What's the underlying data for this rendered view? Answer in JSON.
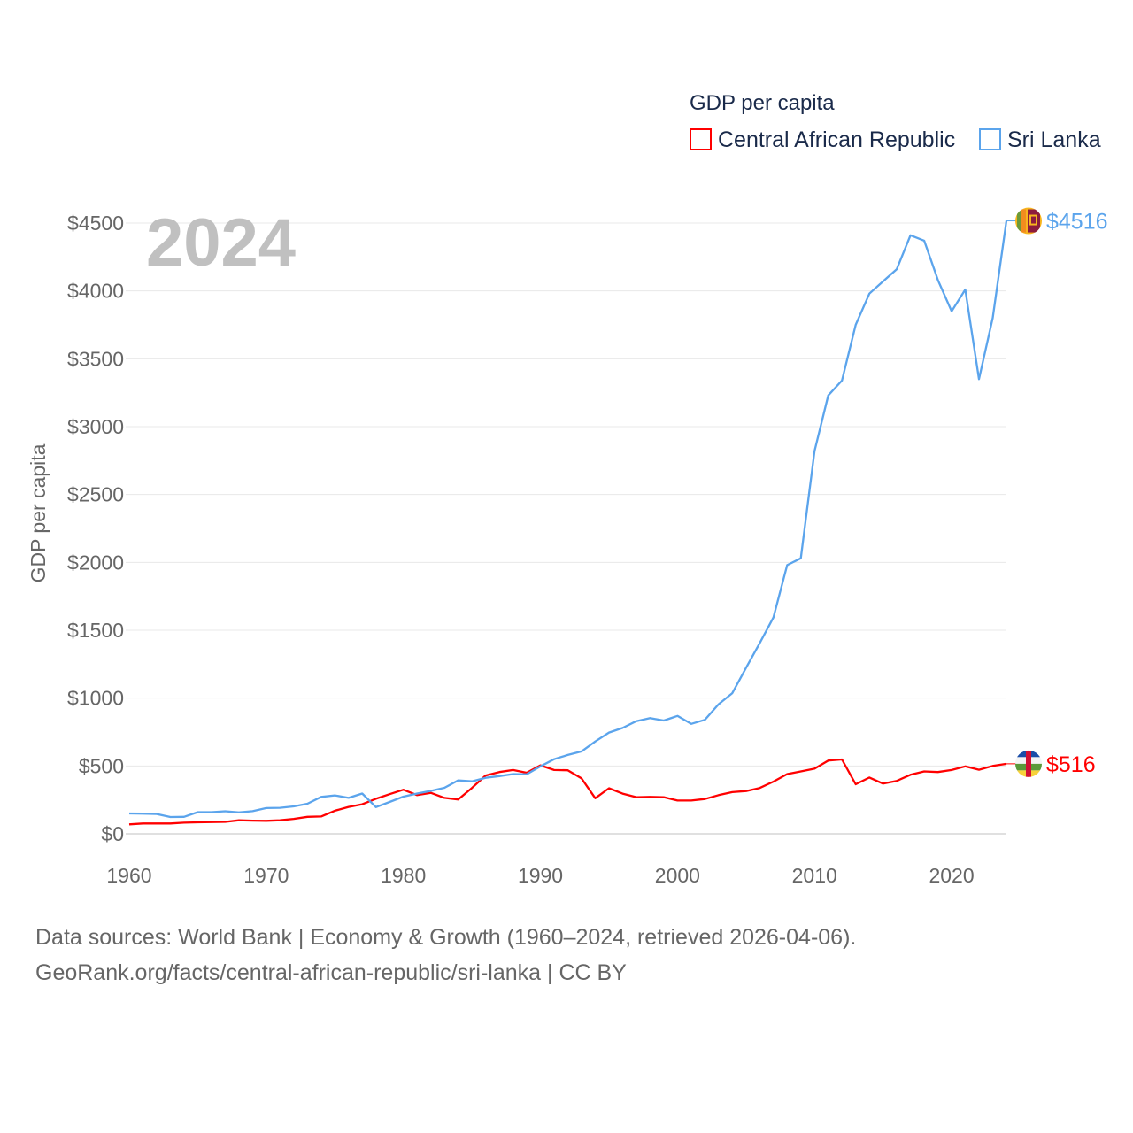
{
  "chart_data": {
    "type": "line",
    "title": "GDP per capita",
    "watermark_year": "2024",
    "xlabel": "",
    "ylabel": "GDP per capita",
    "xlim": [
      1960,
      2024
    ],
    "ylim": [
      0,
      4500
    ],
    "x_ticks": [
      "1960",
      "1970",
      "1980",
      "1990",
      "2000",
      "2010",
      "2020"
    ],
    "y_ticks": [
      "$0",
      "$500",
      "$1000",
      "$1500",
      "$2000",
      "$2500",
      "$3000",
      "$3500",
      "$4000",
      "$4500"
    ],
    "grid": true,
    "legend_position": "top-right",
    "x": [
      1960,
      1961,
      1962,
      1963,
      1964,
      1965,
      1966,
      1967,
      1968,
      1969,
      1970,
      1971,
      1972,
      1973,
      1974,
      1975,
      1976,
      1977,
      1978,
      1979,
      1980,
      1981,
      1982,
      1983,
      1984,
      1985,
      1986,
      1987,
      1988,
      1989,
      1990,
      1991,
      1992,
      1993,
      1994,
      1995,
      1996,
      1997,
      1998,
      1999,
      2000,
      2001,
      2002,
      2003,
      2004,
      2005,
      2006,
      2007,
      2008,
      2009,
      2010,
      2011,
      2012,
      2013,
      2014,
      2015,
      2016,
      2017,
      2018,
      2019,
      2020,
      2021,
      2022,
      2023,
      2024
    ],
    "series": [
      {
        "name": "Central African Republic",
        "color": "#ff0000",
        "end_label": "$516",
        "values": [
          70,
          76,
          76,
          76,
          82,
          85,
          87,
          88,
          100,
          97,
          96,
          100,
          110,
          125,
          128,
          170,
          198,
          218,
          258,
          292,
          325,
          285,
          302,
          265,
          253,
          338,
          430,
          455,
          470,
          450,
          505,
          470,
          468,
          408,
          262,
          336,
          296,
          270,
          272,
          270,
          245,
          245,
          256,
          285,
          307,
          315,
          338,
          385,
          440,
          460,
          480,
          540,
          548,
          365,
          415,
          370,
          390,
          435,
          460,
          455,
          470,
          497,
          472,
          500,
          516
        ]
      },
      {
        "name": "Sri Lanka",
        "color": "#5ba4ec",
        "end_label": "$4516",
        "values": [
          150,
          149,
          146,
          124,
          125,
          160,
          160,
          166,
          158,
          167,
          190,
          192,
          202,
          222,
          272,
          283,
          265,
          297,
          197,
          235,
          274,
          297,
          316,
          339,
          394,
          387,
          413,
          425,
          440,
          438,
          497,
          550,
          581,
          607,
          680,
          746,
          780,
          830,
          853,
          835,
          869,
          810,
          840,
          955,
          1036,
          1222,
          1405,
          1595,
          1980,
          2030,
          2820,
          3230,
          3340,
          3750,
          3980,
          4070,
          4160,
          4410,
          4370,
          4080,
          3850,
          4010,
          3350,
          3800,
          4516
        ]
      }
    ]
  },
  "footer": {
    "line1": "Data sources: World Bank | Economy & Growth (1960–2024, retrieved 2026-04-06).",
    "line2": "GeoRank.org/facts/central-african-republic/sri-lanka | CC BY"
  }
}
